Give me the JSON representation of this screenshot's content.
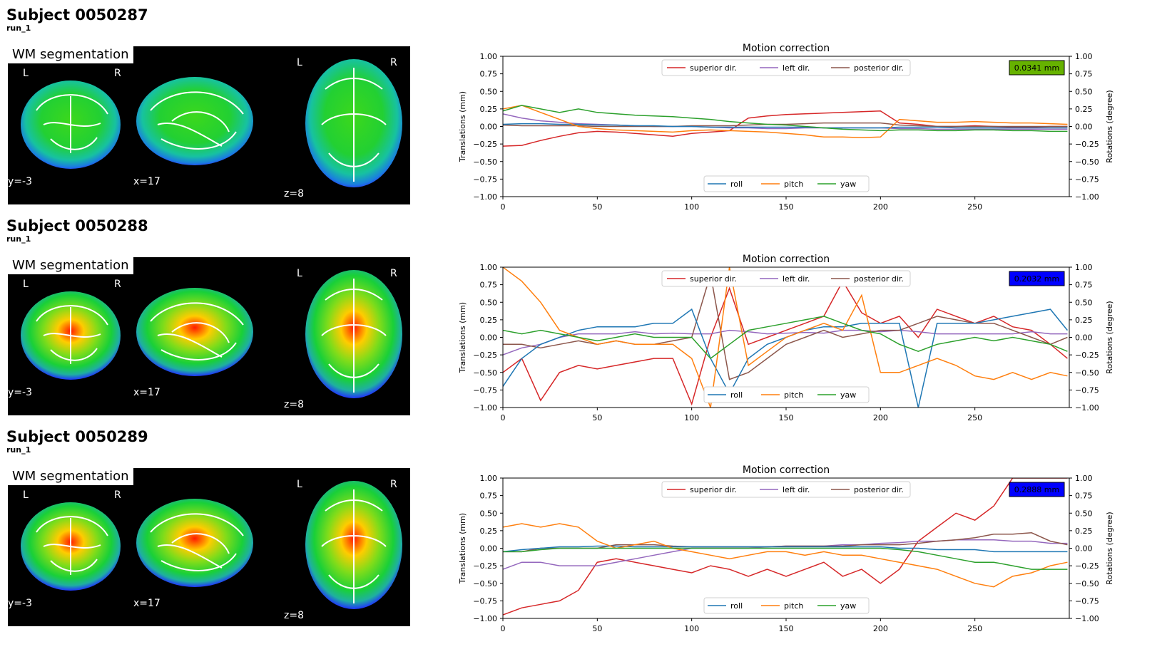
{
  "subjects": [
    {
      "title": "Subject 0050287",
      "run": "run_1",
      "panel": {
        "label": "WM segmentation",
        "orientation": {
          "left": "L",
          "right": "R"
        },
        "coords": {
          "coronal": "y=-3",
          "sagittal": "x=17",
          "axial": "z=8"
        },
        "style": "cool"
      }
    },
    {
      "title": "Subject 0050288",
      "run": "run_1",
      "panel": {
        "label": "WM segmentation",
        "orientation": {
          "left": "L",
          "right": "R"
        },
        "coords": {
          "coronal": "y=-3",
          "sagittal": "x=17",
          "axial": "z=8"
        },
        "style": "warm"
      }
    },
    {
      "title": "Subject 0050289",
      "run": "run_1",
      "panel": {
        "label": "WM segmentation",
        "orientation": {
          "left": "L",
          "right": "R"
        },
        "coords": {
          "coronal": "y=-3",
          "sagittal": "x=17",
          "axial": "z=8"
        },
        "style": "warm"
      }
    }
  ],
  "colors": {
    "superior": "#d62728",
    "left": "#9467bd",
    "posterior": "#8c564b",
    "roll": "#1f77b4",
    "pitch": "#ff7f0e",
    "yaw": "#2ca02c",
    "badge_green": "#66b200",
    "badge_blue": "#0000ff"
  },
  "chart_data": [
    {
      "type": "line",
      "title": "Motion correction",
      "xlabel": "",
      "ylabel": "Translations (mm)",
      "y2label": "Rotations (degree)",
      "xlim": [
        0,
        300
      ],
      "ylim": [
        -1,
        1
      ],
      "y2lim": [
        -1,
        1
      ],
      "xticks": [
        "0",
        "50",
        "100",
        "150",
        "200",
        "250"
      ],
      "yticks": [
        "1.00",
        "0.75",
        "0.50",
        "0.25",
        "0.00",
        "−0.25",
        "−0.50",
        "−0.75",
        "−1.00"
      ],
      "legend_top": [
        "superior dir.",
        "left dir.",
        "posterior dir."
      ],
      "legend_bottom": [
        "roll",
        "pitch",
        "yaw"
      ],
      "badge": {
        "text": "0.0341 mm",
        "color": "green"
      },
      "x": [
        0,
        10,
        20,
        30,
        40,
        50,
        60,
        70,
        80,
        90,
        100,
        110,
        120,
        130,
        140,
        150,
        160,
        170,
        180,
        190,
        200,
        210,
        220,
        230,
        240,
        250,
        260,
        270,
        280,
        290,
        299
      ],
      "series": [
        {
          "name": "superior dir.",
          "key": "superior",
          "values": [
            -0.28,
            -0.27,
            -0.2,
            -0.14,
            -0.09,
            -0.07,
            -0.08,
            -0.1,
            -0.12,
            -0.14,
            -0.1,
            -0.08,
            -0.06,
            0.12,
            0.15,
            0.17,
            0.18,
            0.19,
            0.2,
            0.21,
            0.22,
            0.05,
            0.03,
            0.0,
            0.0,
            0.01,
            0.0,
            -0.01,
            -0.01,
            0.0,
            0.0
          ]
        },
        {
          "name": "left dir.",
          "key": "left",
          "values": [
            0.18,
            0.12,
            0.08,
            0.06,
            0.04,
            0.03,
            0.02,
            0.01,
            0.0,
            0.0,
            0.0,
            -0.01,
            -0.02,
            -0.02,
            -0.03,
            -0.03,
            -0.02,
            -0.02,
            -0.02,
            -0.02,
            -0.02,
            -0.03,
            -0.03,
            -0.04,
            -0.04,
            -0.04,
            -0.04,
            -0.04,
            -0.04,
            -0.04,
            -0.04
          ]
        },
        {
          "name": "posterior dir.",
          "key": "posterior",
          "values": [
            0.02,
            0.01,
            0.01,
            0.01,
            0.01,
            0.0,
            0.0,
            0.0,
            0.0,
            0.0,
            0.01,
            0.01,
            0.01,
            0.02,
            0.03,
            0.03,
            0.04,
            0.05,
            0.05,
            0.05,
            0.05,
            0.02,
            0.01,
            0.0,
            0.0,
            0.0,
            0.0,
            0.0,
            0.0,
            0.0,
            0.0
          ]
        },
        {
          "name": "roll",
          "key": "roll",
          "values": [
            0.03,
            0.04,
            0.04,
            0.03,
            0.03,
            0.02,
            0.02,
            0.01,
            0.01,
            0.0,
            0.0,
            -0.01,
            -0.01,
            -0.01,
            -0.01,
            -0.01,
            -0.01,
            -0.02,
            -0.02,
            -0.02,
            -0.02,
            -0.01,
            -0.01,
            -0.01,
            -0.02,
            -0.02,
            -0.02,
            -0.02,
            -0.02,
            -0.02,
            -0.02
          ]
        },
        {
          "name": "pitch",
          "key": "pitch",
          "values": [
            0.25,
            0.3,
            0.2,
            0.1,
            0.0,
            -0.03,
            -0.05,
            -0.06,
            -0.07,
            -0.08,
            -0.06,
            -0.05,
            -0.06,
            -0.07,
            -0.08,
            -0.1,
            -0.12,
            -0.15,
            -0.15,
            -0.16,
            -0.15,
            0.1,
            0.08,
            0.06,
            0.06,
            0.07,
            0.06,
            0.05,
            0.05,
            0.04,
            0.03
          ]
        },
        {
          "name": "yaw",
          "key": "yaw",
          "values": [
            0.22,
            0.3,
            0.25,
            0.2,
            0.25,
            0.2,
            0.18,
            0.16,
            0.15,
            0.14,
            0.12,
            0.1,
            0.07,
            0.05,
            0.03,
            0.02,
            0.0,
            -0.02,
            -0.04,
            -0.05,
            -0.06,
            -0.05,
            -0.05,
            -0.06,
            -0.06,
            -0.05,
            -0.05,
            -0.06,
            -0.06,
            -0.07,
            -0.07
          ]
        }
      ]
    },
    {
      "type": "line",
      "title": "Motion correction",
      "xlabel": "",
      "ylabel": "Translations (mm)",
      "y2label": "Rotations (degree)",
      "xlim": [
        0,
        300
      ],
      "ylim": [
        -1,
        1
      ],
      "y2lim": [
        -1,
        1
      ],
      "xticks": [
        "0",
        "50",
        "100",
        "150",
        "200",
        "250"
      ],
      "yticks": [
        "1.00",
        "0.75",
        "0.50",
        "0.25",
        "0.00",
        "−0.25",
        "−0.50",
        "−0.75",
        "−1.00"
      ],
      "legend_top": [
        "superior dir.",
        "left dir.",
        "posterior dir."
      ],
      "legend_bottom": [
        "roll",
        "pitch",
        "yaw"
      ],
      "badge": {
        "text": "0.2032 mm",
        "color": "blue"
      },
      "x": [
        0,
        10,
        20,
        30,
        40,
        50,
        60,
        70,
        80,
        90,
        100,
        110,
        120,
        130,
        140,
        150,
        160,
        170,
        180,
        190,
        200,
        210,
        220,
        230,
        240,
        250,
        260,
        270,
        280,
        290,
        299
      ],
      "series": [
        {
          "name": "superior dir.",
          "key": "superior",
          "values": [
            -0.5,
            -0.3,
            -0.9,
            -0.5,
            -0.4,
            -0.45,
            -0.4,
            -0.35,
            -0.3,
            -0.3,
            -0.95,
            0.0,
            0.7,
            -0.1,
            0.0,
            0.1,
            0.2,
            0.3,
            0.8,
            0.35,
            0.2,
            0.3,
            0.0,
            0.4,
            0.3,
            0.2,
            0.3,
            0.15,
            0.1,
            -0.1,
            -0.3
          ]
        },
        {
          "name": "left dir.",
          "key": "left",
          "values": [
            -0.25,
            -0.15,
            -0.1,
            0.0,
            0.05,
            0.05,
            0.05,
            0.08,
            0.05,
            0.06,
            0.05,
            0.05,
            0.1,
            0.08,
            0.05,
            0.06,
            0.07,
            0.06,
            0.1,
            0.1,
            0.08,
            0.1,
            0.08,
            0.05,
            0.05,
            0.05,
            0.05,
            0.05,
            0.08,
            0.05,
            0.05
          ]
        },
        {
          "name": "posterior dir.",
          "key": "posterior",
          "values": [
            -0.1,
            -0.1,
            -0.15,
            -0.1,
            -0.05,
            -0.1,
            -0.05,
            -0.1,
            -0.1,
            -0.05,
            0.0,
            0.9,
            -0.6,
            -0.5,
            -0.3,
            -0.1,
            0.0,
            0.1,
            0.0,
            0.05,
            0.1,
            0.1,
            0.2,
            0.3,
            0.25,
            0.2,
            0.2,
            0.1,
            0.0,
            -0.1,
            0.0
          ]
        },
        {
          "name": "roll",
          "key": "roll",
          "values": [
            -0.7,
            -0.3,
            -0.1,
            0.0,
            0.1,
            0.15,
            0.15,
            0.15,
            0.2,
            0.2,
            0.4,
            -0.3,
            -0.8,
            -0.3,
            -0.1,
            0.0,
            0.1,
            0.15,
            0.15,
            0.2,
            0.2,
            0.2,
            -1.0,
            0.2,
            0.2,
            0.2,
            0.25,
            0.3,
            0.35,
            0.4,
            0.1
          ]
        },
        {
          "name": "pitch",
          "key": "pitch",
          "values": [
            1.0,
            0.8,
            0.5,
            0.1,
            0.0,
            -0.1,
            -0.05,
            -0.1,
            -0.1,
            -0.1,
            -0.3,
            -1.0,
            1.0,
            -0.4,
            -0.2,
            0.0,
            0.1,
            0.2,
            0.1,
            0.6,
            -0.5,
            -0.5,
            -0.4,
            -0.3,
            -0.4,
            -0.55,
            -0.6,
            -0.5,
            -0.6,
            -0.5,
            -0.55
          ]
        },
        {
          "name": "yaw",
          "key": "yaw",
          "values": [
            0.1,
            0.05,
            0.1,
            0.05,
            0.0,
            -0.05,
            0.0,
            0.05,
            0.0,
            0.0,
            0.0,
            -0.3,
            -0.1,
            0.1,
            0.15,
            0.2,
            0.25,
            0.3,
            0.2,
            0.1,
            0.05,
            -0.1,
            -0.2,
            -0.1,
            -0.05,
            0.0,
            -0.05,
            0.0,
            -0.05,
            -0.1,
            -0.2
          ]
        }
      ]
    },
    {
      "type": "line",
      "title": "Motion correction",
      "xlabel": "",
      "ylabel": "Translations (mm)",
      "y2label": "Rotations (degree)",
      "xlim": [
        0,
        300
      ],
      "ylim": [
        -1,
        1
      ],
      "y2lim": [
        -1,
        1
      ],
      "xticks": [
        "0",
        "50",
        "100",
        "150",
        "200",
        "250"
      ],
      "yticks": [
        "1.00",
        "0.75",
        "0.50",
        "0.25",
        "0.00",
        "−0.25",
        "−0.50",
        "−0.75",
        "−1.00"
      ],
      "legend_top": [
        "superior dir.",
        "left dir.",
        "posterior dir."
      ],
      "legend_bottom": [
        "roll",
        "pitch",
        "yaw"
      ],
      "badge": {
        "text": "0.2888 mm",
        "color": "blue"
      },
      "x": [
        0,
        10,
        20,
        30,
        40,
        50,
        60,
        70,
        80,
        90,
        100,
        110,
        120,
        130,
        140,
        150,
        160,
        170,
        180,
        190,
        200,
        210,
        220,
        230,
        240,
        250,
        260,
        270,
        280,
        290,
        299
      ],
      "series": [
        {
          "name": "superior dir.",
          "key": "superior",
          "values": [
            -0.95,
            -0.85,
            -0.8,
            -0.75,
            -0.6,
            -0.2,
            -0.15,
            -0.2,
            -0.25,
            -0.3,
            -0.35,
            -0.25,
            -0.3,
            -0.4,
            -0.3,
            -0.4,
            -0.3,
            -0.2,
            -0.4,
            -0.3,
            -0.5,
            -0.3,
            0.1,
            0.3,
            0.5,
            0.4,
            0.6,
            1.0,
            1.0,
            1.0,
            1.0
          ]
        },
        {
          "name": "left dir.",
          "key": "left",
          "values": [
            -0.3,
            -0.2,
            -0.2,
            -0.25,
            -0.25,
            -0.25,
            -0.2,
            -0.15,
            -0.1,
            -0.05,
            0.0,
            0.0,
            0.0,
            0.0,
            0.02,
            0.03,
            0.03,
            0.03,
            0.05,
            0.05,
            0.07,
            0.08,
            0.1,
            0.1,
            0.12,
            0.12,
            0.12,
            0.1,
            0.1,
            0.07,
            0.07
          ]
        },
        {
          "name": "posterior dir.",
          "key": "posterior",
          "values": [
            -0.05,
            -0.05,
            0.0,
            0.0,
            0.0,
            0.0,
            0.05,
            0.05,
            0.05,
            0.03,
            0.02,
            0.02,
            0.02,
            0.02,
            0.02,
            0.03,
            0.03,
            0.03,
            0.03,
            0.05,
            0.05,
            0.05,
            0.07,
            0.1,
            0.12,
            0.15,
            0.2,
            0.2,
            0.22,
            0.1,
            0.05
          ]
        },
        {
          "name": "roll",
          "key": "roll",
          "values": [
            -0.05,
            -0.02,
            0.0,
            0.02,
            0.02,
            0.03,
            0.03,
            0.02,
            0.02,
            0.02,
            0.02,
            0.02,
            0.02,
            0.02,
            0.02,
            0.02,
            0.02,
            0.02,
            0.02,
            0.02,
            0.02,
            0.0,
            0.0,
            -0.02,
            -0.02,
            -0.02,
            -0.05,
            -0.05,
            -0.05,
            -0.05,
            -0.05
          ]
        },
        {
          "name": "pitch",
          "key": "pitch",
          "values": [
            0.3,
            0.35,
            0.3,
            0.35,
            0.3,
            0.1,
            0.0,
            0.05,
            0.1,
            0.0,
            -0.05,
            -0.1,
            -0.15,
            -0.1,
            -0.05,
            -0.05,
            -0.1,
            -0.05,
            -0.1,
            -0.1,
            -0.15,
            -0.2,
            -0.25,
            -0.3,
            -0.4,
            -0.5,
            -0.55,
            -0.4,
            -0.35,
            -0.25,
            -0.2
          ]
        },
        {
          "name": "yaw",
          "key": "yaw",
          "values": [
            -0.05,
            -0.05,
            -0.02,
            0.0,
            0.0,
            0.0,
            0.0,
            0.0,
            0.0,
            0.0,
            0.0,
            0.0,
            0.0,
            0.0,
            0.0,
            0.0,
            0.0,
            0.0,
            0.0,
            0.0,
            0.0,
            -0.02,
            -0.05,
            -0.1,
            -0.15,
            -0.2,
            -0.2,
            -0.25,
            -0.3,
            -0.3,
            -0.3
          ]
        }
      ]
    }
  ]
}
